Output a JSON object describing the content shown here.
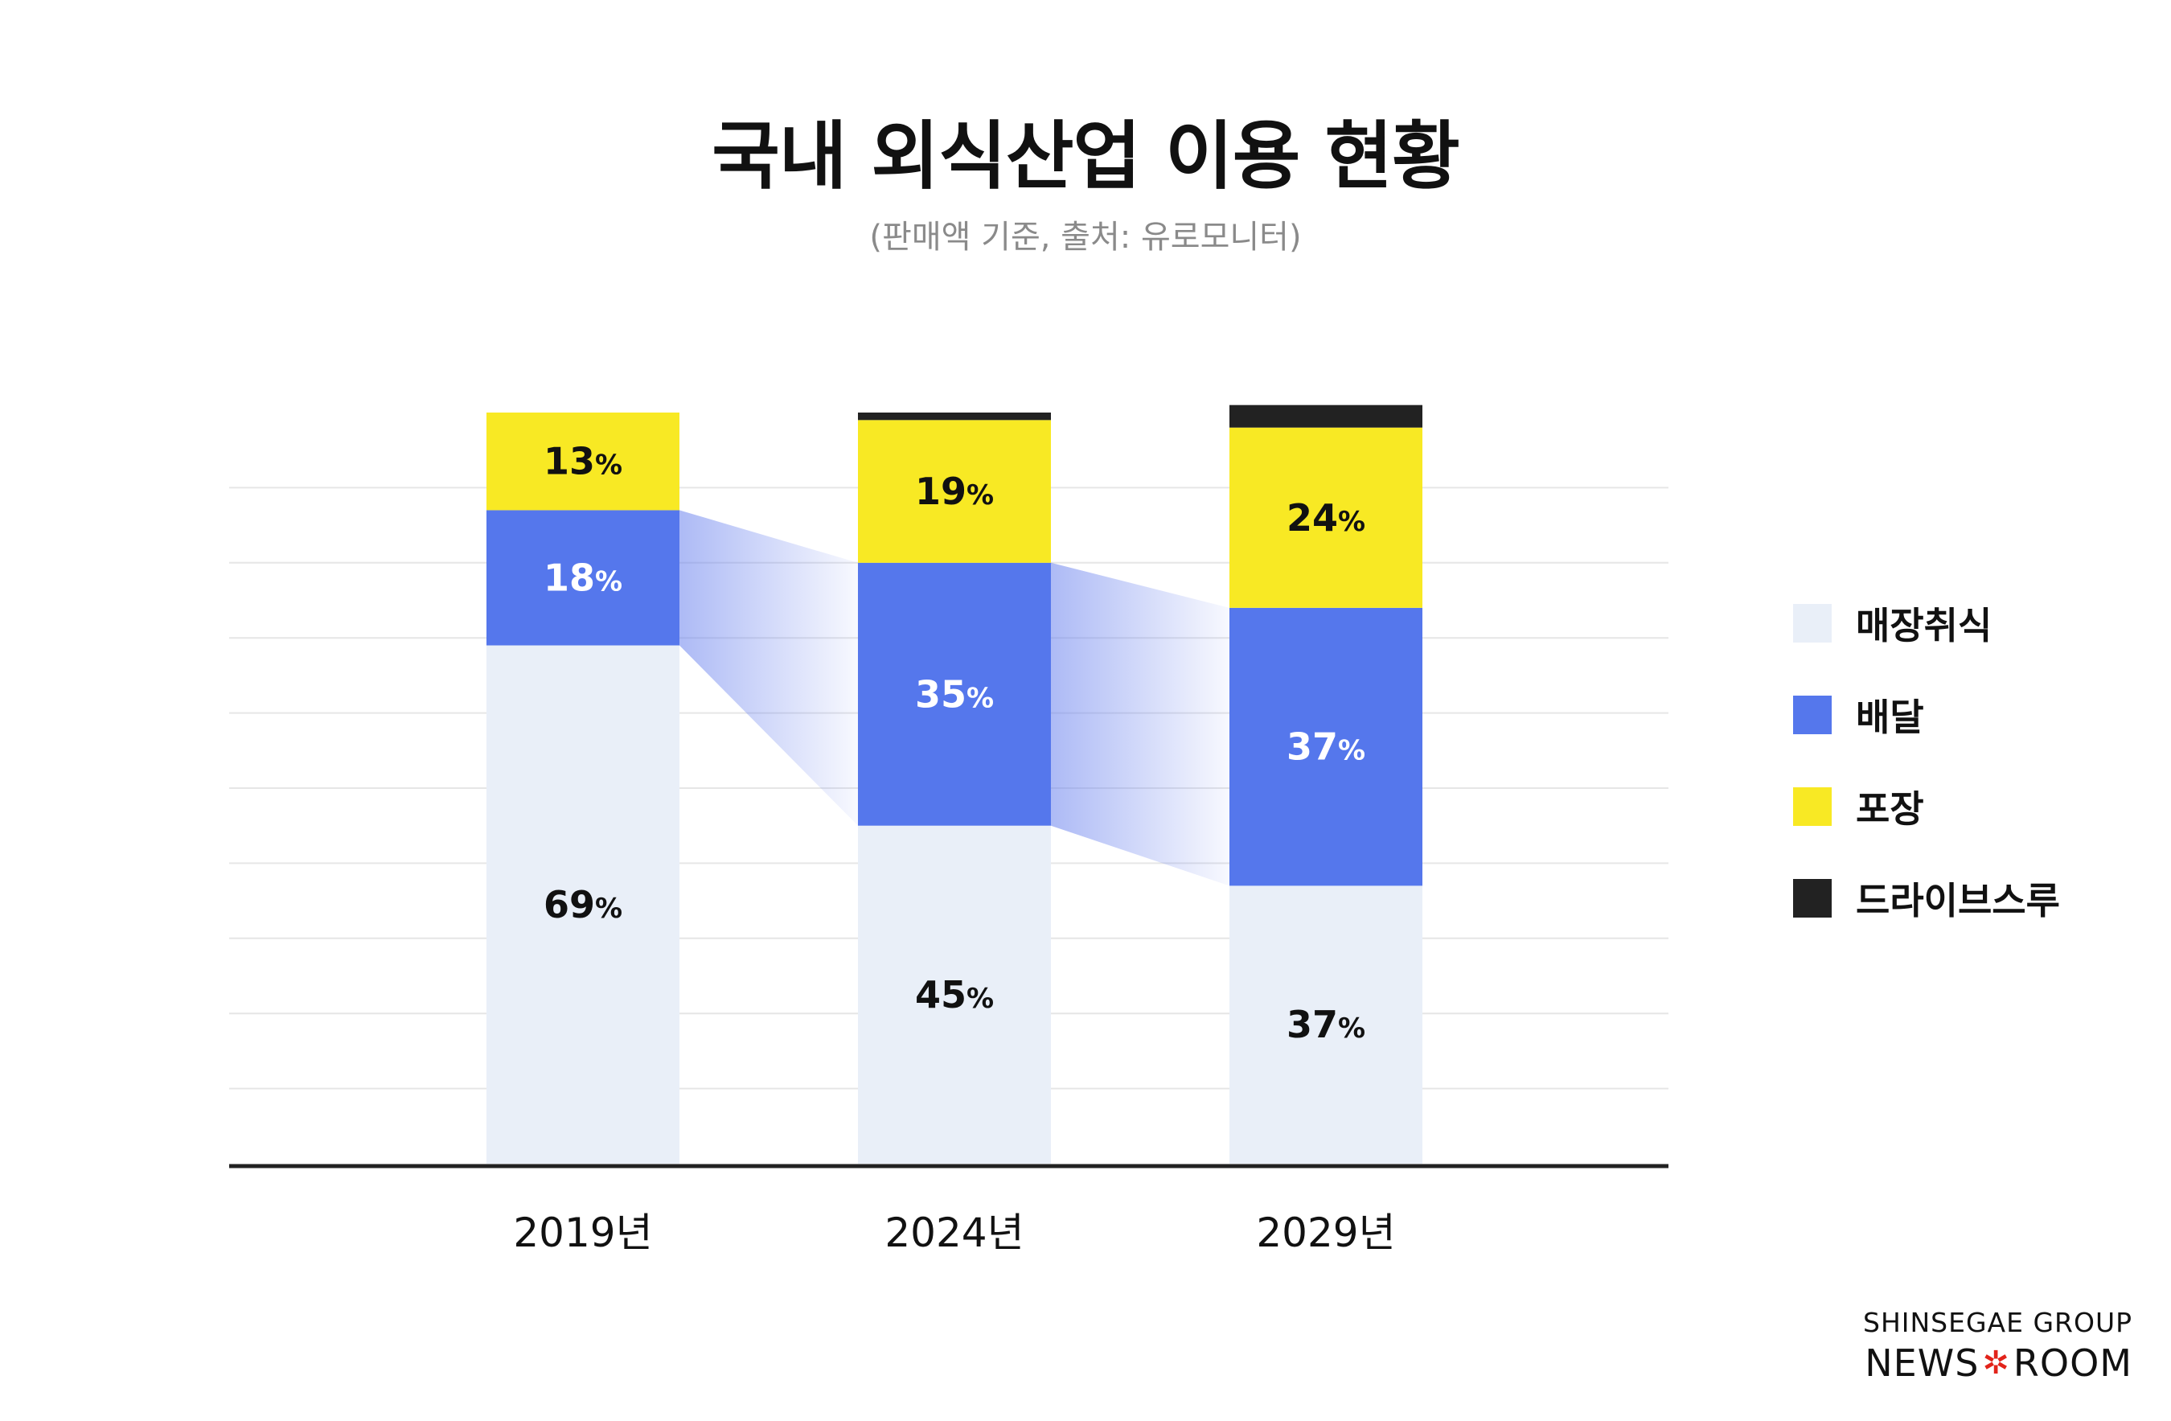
{
  "title": "국내 외식산업 이용 현황",
  "subtitle": "(판매액 기준, 출처: 유로모니터)",
  "chart_data": {
    "type": "bar",
    "stacked": true,
    "categories": [
      "2019년",
      "2024년",
      "2029년"
    ],
    "series": [
      {
        "name": "매장취식",
        "values": [
          69,
          45,
          37
        ],
        "labels": [
          "69",
          "45",
          "37"
        ],
        "color": "#E9EFF8",
        "text_color": "#111111"
      },
      {
        "name": "배달",
        "values": [
          18,
          35,
          37
        ],
        "labels": [
          "18",
          "35",
          "37"
        ],
        "color": "#5577EC",
        "text_color": "#ffffff"
      },
      {
        "name": "포장",
        "values": [
          13,
          19,
          24
        ],
        "labels": [
          "13",
          "19",
          "24"
        ],
        "color": "#F8E924",
        "text_color": "#111111"
      },
      {
        "name": "드라이브스루",
        "values": [
          0,
          1,
          3
        ],
        "labels": [
          "",
          "",
          ""
        ],
        "color": "#222222",
        "text_color": "#ffffff"
      }
    ],
    "percent_sign": "%",
    "ylim": [
      0,
      100
    ],
    "grid": true,
    "legend": "right"
  },
  "brand": {
    "top": "SHINSEGAE GROUP",
    "left": "NEWS",
    "flower": "✲",
    "right": "ROOM"
  }
}
